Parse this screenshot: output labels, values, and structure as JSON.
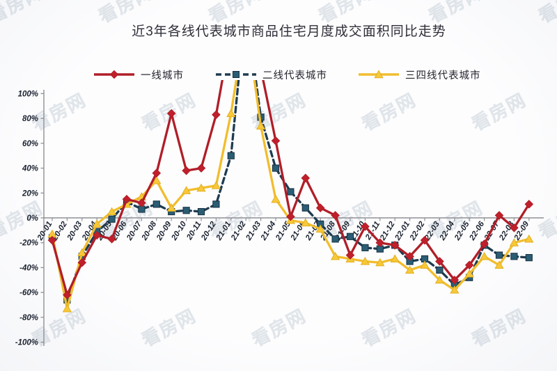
{
  "title": "近3年各线代表城市商品住宅月度成交面积同比走势",
  "watermark": {
    "text": "看房网"
  },
  "chart_data": {
    "type": "line",
    "title": "近3年各线代表城市商品住宅月度成交面积同比走势",
    "x": [
      "20-01",
      "20-02",
      "20-03",
      "20-04",
      "20-05",
      "20-06",
      "20-07",
      "20-08",
      "20-09",
      "20-10",
      "20-11",
      "20-12",
      "21-01",
      "21-02",
      "21-03",
      "21-04",
      "21-05",
      "21-06",
      "21-07",
      "21-08",
      "21-09",
      "21-10",
      "21-11",
      "21-12",
      "22-01",
      "22-02",
      "22-03",
      "22-04",
      "22-05",
      "22-06",
      "22-07",
      "22-08",
      "22-09"
    ],
    "unit": "%",
    "ylim": [
      -100,
      100
    ],
    "y_ticks": [
      "100%",
      "80%",
      "60%",
      "40%",
      "20%",
      "0%",
      "-20%",
      "-40%",
      "-60%",
      "-80%",
      "-100%"
    ],
    "legend_position": "top",
    "grid": "zero-line-only",
    "note": "lines for 21-01 ~ 21-03 spike above +100% and run off the top of the plot (clipped)",
    "series": [
      {
        "name": "一线城市",
        "color": "#b01e28",
        "marker": "diamond",
        "marker_fill": "#c0202b",
        "dash": "solid",
        "values": [
          -18,
          -62,
          -36,
          -14,
          -17,
          15,
          12,
          36,
          84,
          38,
          40,
          83,
          150,
          165,
          120,
          62,
          1,
          32,
          8,
          2,
          -30,
          -7,
          -20,
          -22,
          -31,
          -18,
          -35,
          -50,
          -38,
          -21,
          2,
          -8,
          11
        ]
      },
      {
        "name": "二线代表城市",
        "color": "#1e3c50",
        "marker": "square",
        "marker_fill": "#2b5d74",
        "dash": "dashed",
        "values": [
          -16,
          -66,
          -31,
          -11,
          -1,
          13,
          7,
          11,
          5,
          6,
          5,
          11,
          50,
          170,
          81,
          40,
          21,
          8,
          -5,
          -17,
          -15,
          -24,
          -25,
          -22,
          -35,
          -33,
          -42,
          -54,
          -48,
          -22,
          -30,
          -31,
          -32
        ]
      },
      {
        "name": "三四线代表城市",
        "color": "#f2bd2d",
        "marker": "triangle",
        "marker_fill": "#f7c83a",
        "dash": "solid",
        "values": [
          -13,
          -73,
          -28,
          -5,
          5,
          11,
          17,
          30,
          8,
          22,
          24,
          26,
          84,
          160,
          74,
          15,
          -2,
          -4,
          -9,
          -31,
          -33,
          -35,
          -36,
          -33,
          -42,
          -38,
          -50,
          -58,
          -45,
          -31,
          -38,
          -20,
          -17
        ]
      }
    ]
  }
}
